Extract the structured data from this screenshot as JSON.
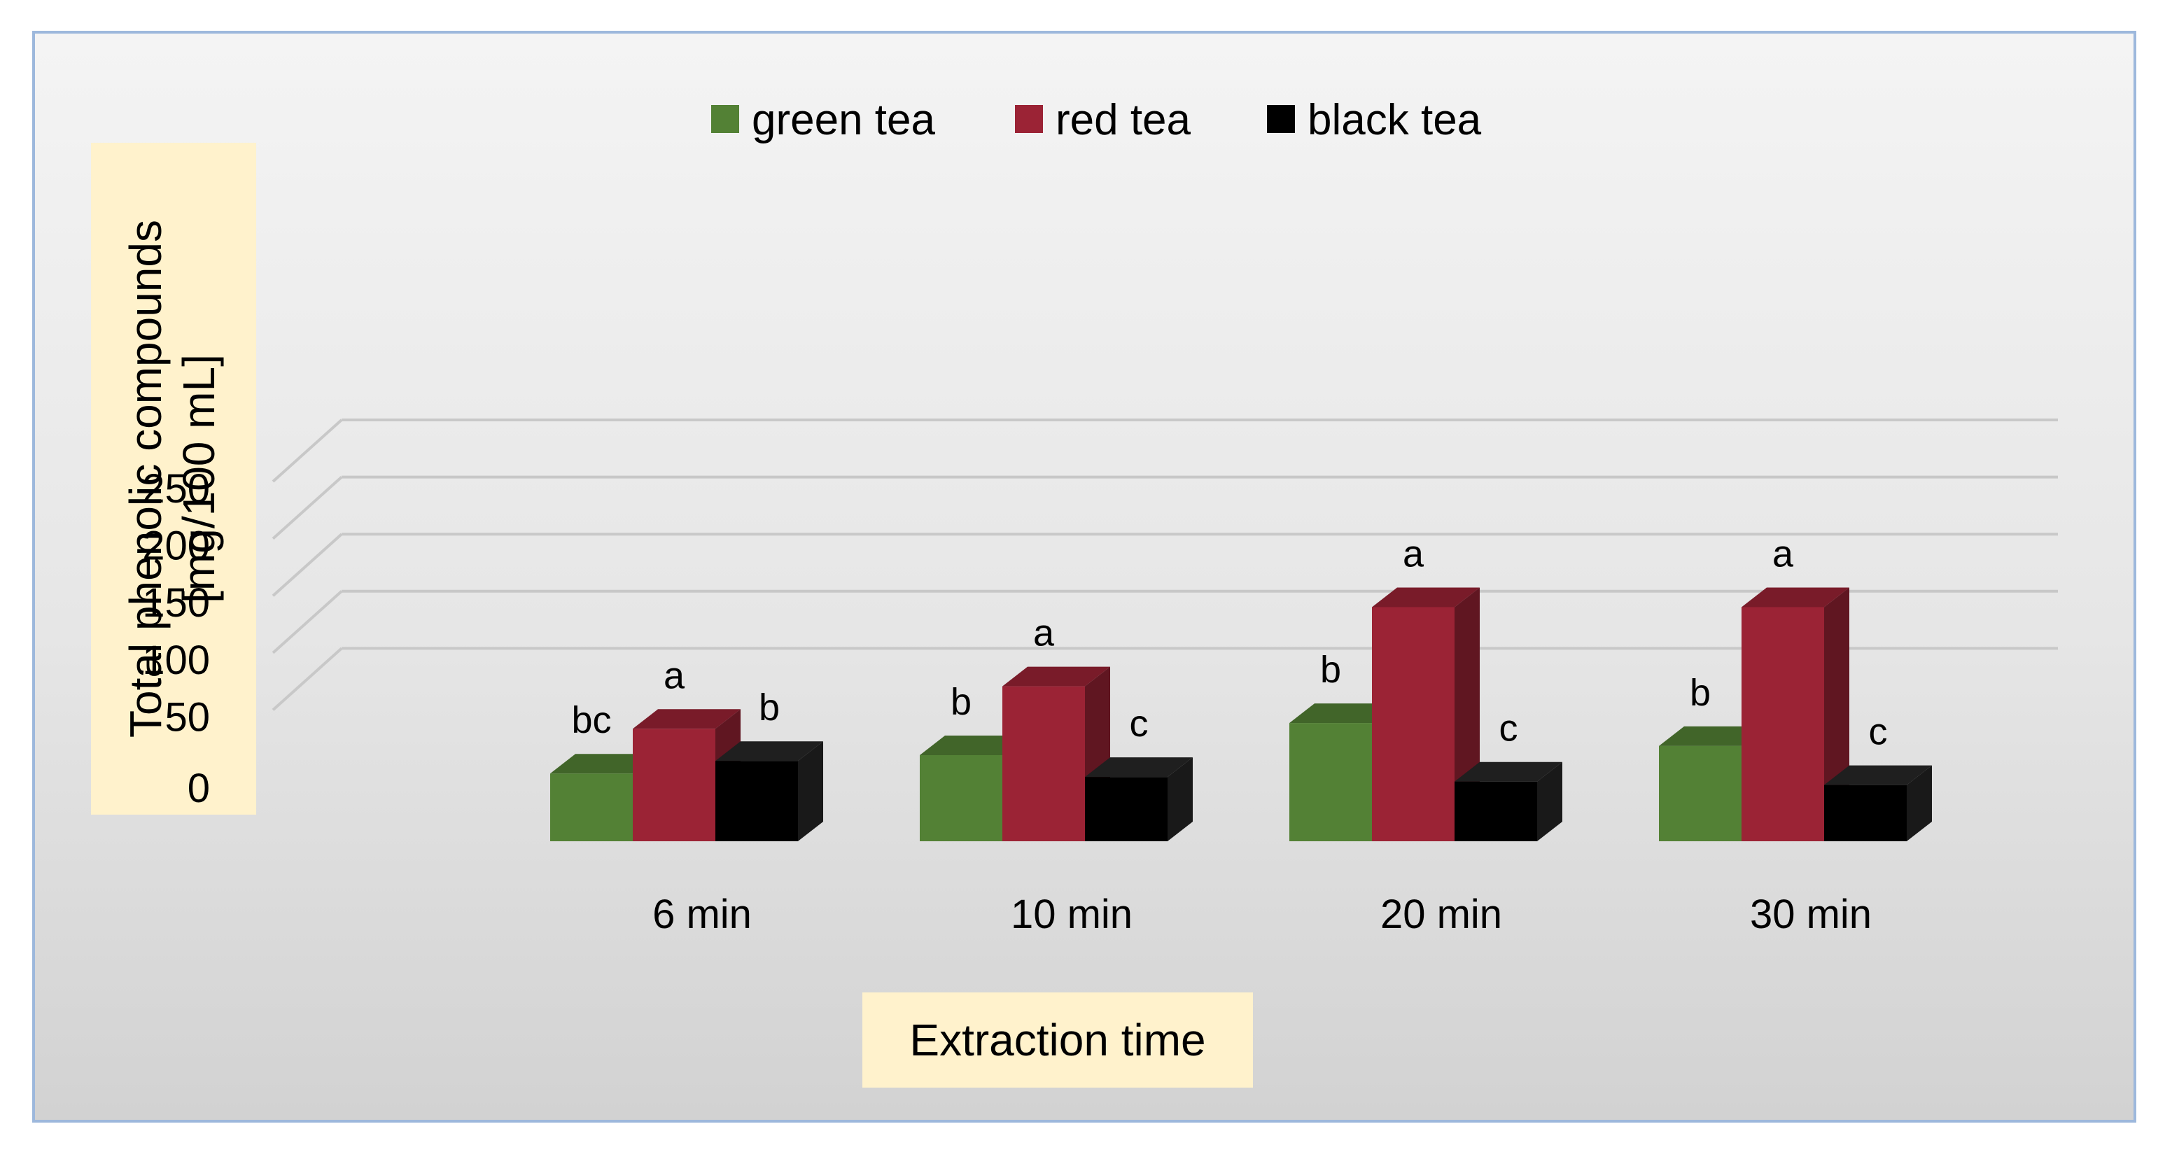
{
  "chart_data": {
    "type": "bar",
    "style": "3d-clustered",
    "xlabel": "Extraction time",
    "ylabel_lines": [
      "Total phenolic compounds",
      "[mg/100 mL]"
    ],
    "categories": [
      "6 min",
      "10 min",
      "20 min",
      "30 min"
    ],
    "ylim": [
      0,
      250
    ],
    "yticks": [
      0,
      50,
      100,
      150,
      200,
      250
    ],
    "grid": true,
    "legend_position": "top",
    "series": [
      {
        "name": "green tea",
        "color": "#538135",
        "values": [
          59,
          75,
          103,
          83
        ],
        "labels": [
          "bc",
          "b",
          "b",
          "b"
        ]
      },
      {
        "name": "red tea",
        "color": "#9b2335",
        "values": [
          98,
          135,
          204,
          204
        ],
        "labels": [
          "a",
          "a",
          "a",
          "a"
        ]
      },
      {
        "name": "black tea",
        "color": "#000000",
        "values": [
          70,
          56,
          52,
          49
        ],
        "labels": [
          "b",
          "c",
          "c",
          "c"
        ]
      }
    ]
  }
}
